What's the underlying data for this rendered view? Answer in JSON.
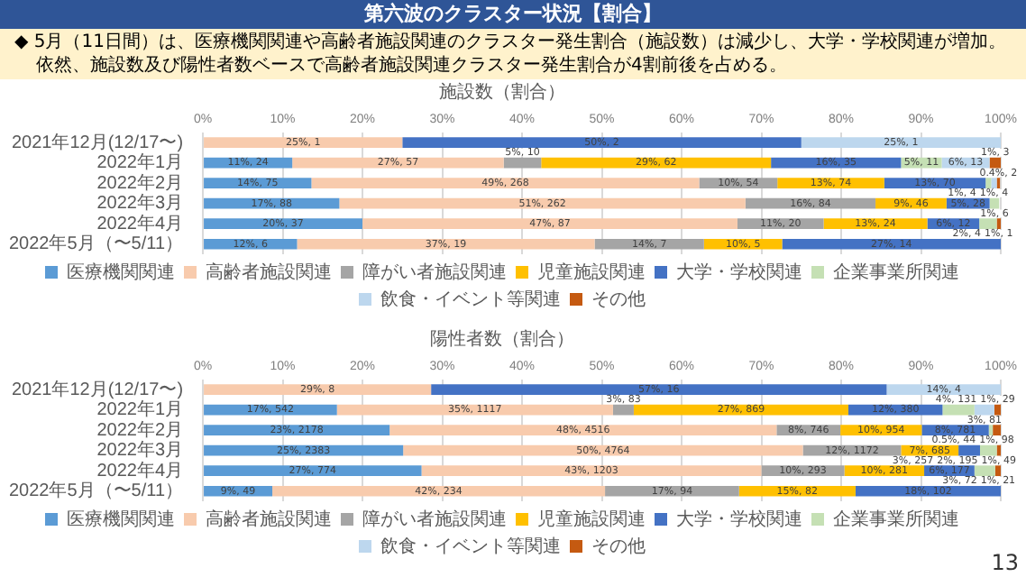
{
  "chart_data": [
    {
      "type": "bar",
      "orientation": "horizontal",
      "stacked": true,
      "title": "施設数（割合）",
      "annotations": [
        "第六波のクラスター状況【割合】",
        "◆ 5月（11日間）は、医療機関関連や高齢者施設関連のクラスター発生割合（施設数）は減少し、大学・学校関連が増加。",
        "依然、施設数及び陽性者数ベースで高齢者施設関連クラスター発生割合が4割前後を占める。"
      ],
      "categories": [
        "2021年12月(12/17〜)",
        "2022年1月",
        "2022年2月",
        "2022年3月",
        "2022年4月",
        "2022年5月（〜5/11）"
      ],
      "xlim": [
        0,
        100
      ],
      "xticks": [
        {
          "value": 0,
          "label": "0%"
        },
        {
          "value": 10,
          "label": "10%"
        },
        {
          "value": 20,
          "label": "20%"
        },
        {
          "value": 30,
          "label": "30%"
        },
        {
          "value": 40,
          "label": "40%"
        },
        {
          "value": 50,
          "label": "50%"
        },
        {
          "value": 60,
          "label": "60%"
        },
        {
          "value": 70,
          "label": "70%"
        },
        {
          "value": 80,
          "label": "80%"
        },
        {
          "value": 90,
          "label": "90%"
        },
        {
          "value": 100,
          "label": "100%"
        }
      ],
      "grid": "x",
      "legend": "bottom",
      "series": [
        {
          "name": "医療機関関連",
          "color": "#5b9bd5",
          "values": [
            null,
            11.2,
            13.6,
            17.1,
            20.0,
            11.8
          ],
          "value_labels": [
            null,
            "11%, 24",
            "14%, 75",
            "17%, 88",
            "20%, 37",
            "12%, 6"
          ]
        },
        {
          "name": "高齢者施設関連",
          "color": "#f8cbad",
          "values": [
            25,
            26.5,
            48.6,
            50.9,
            47.0,
            37.3
          ],
          "value_labels": [
            "25%, 1",
            "27%, 57",
            "49%, 268",
            "51%, 262",
            "47%, 87",
            "37%, 19"
          ]
        },
        {
          "name": "障がい者施設関連",
          "color": "#a5a5a5",
          "values": [
            null,
            4.7,
            9.8,
            16.3,
            10.8,
            13.7
          ],
          "value_labels": [
            null,
            "5%, 10",
            "10%, 54",
            "16%, 84",
            "11%, 20",
            "14%, 7"
          ]
        },
        {
          "name": "児童施設関連",
          "color": "#ffc000",
          "values": [
            null,
            28.8,
            13.4,
            8.9,
            13.0,
            9.8
          ],
          "value_labels": [
            null,
            "29%, 62",
            "13%, 74",
            "9%, 46",
            "13%, 24",
            "10%, 5"
          ]
        },
        {
          "name": "大学・学校関連",
          "color": "#4472c4",
          "values": [
            50,
            16.3,
            12.7,
            5.4,
            6.5,
            27.4
          ],
          "value_labels": [
            "50%, 2",
            "16%, 35",
            "13%, 70",
            "5%, 28",
            "6%, 12",
            "27%, 14"
          ]
        },
        {
          "name": "企業事業所関連",
          "color": "#c5e0b4",
          "values": [
            null,
            5.1,
            0.7,
            1.2,
            2.2,
            null
          ],
          "value_labels": [
            null,
            "5%, 11",
            "1%, 4",
            "1%, 6",
            "2%, 4",
            null
          ]
        },
        {
          "name": "飲食・イベント等関連",
          "color": "#bdd7ee",
          "values": [
            25,
            6.0,
            0.7,
            null,
            null,
            null
          ],
          "value_labels": [
            "25%, 1",
            "6%, 13",
            "1%, 4",
            null,
            null,
            null
          ]
        },
        {
          "name": "その他",
          "color": "#c55a11",
          "values": [
            null,
            1.4,
            0.4,
            null,
            0.5,
            null
          ],
          "value_labels": [
            null,
            "1%, 3",
            "0.4%, 2",
            null,
            "1%, 1",
            null
          ]
        }
      ]
    },
    {
      "type": "bar",
      "orientation": "horizontal",
      "stacked": true,
      "title": "陽性者数（割合）",
      "annotations": [
        "13"
      ],
      "categories": [
        "2021年12月(12/17〜)",
        "2022年1月",
        "2022年2月",
        "2022年3月",
        "2022年4月",
        "2022年5月（〜5/11）"
      ],
      "xlim": [
        0,
        100
      ],
      "xticks": [
        {
          "value": 0,
          "label": "0%"
        },
        {
          "value": 10,
          "label": "10%"
        },
        {
          "value": 20,
          "label": "20%"
        },
        {
          "value": 30,
          "label": "30%"
        },
        {
          "value": 40,
          "label": "40%"
        },
        {
          "value": 50,
          "label": "50%"
        },
        {
          "value": 60,
          "label": "60%"
        },
        {
          "value": 70,
          "label": "70%"
        },
        {
          "value": 80,
          "label": "80%"
        },
        {
          "value": 90,
          "label": "90%"
        },
        {
          "value": 100,
          "label": "100%"
        }
      ],
      "grid": "x",
      "legend": "bottom",
      "series": [
        {
          "name": "医療機関関連",
          "color": "#5b9bd5",
          "values": [
            null,
            16.8,
            23.4,
            25.1,
            27.4,
            8.7
          ],
          "value_labels": [
            null,
            "17%, 542",
            "23%, 2178",
            "25%, 2383",
            "27%, 774",
            "9%, 49"
          ]
        },
        {
          "name": "高齢者施設関連",
          "color": "#f8cbad",
          "values": [
            28.6,
            34.6,
            48.5,
            50.1,
            42.6,
            41.7
          ],
          "value_labels": [
            "29%, 8",
            "35%, 1117",
            "48%, 4516",
            "50%, 4764",
            "43%, 1203",
            "42%, 234"
          ]
        },
        {
          "name": "障がい者施設関連",
          "color": "#a5a5a5",
          "values": [
            null,
            2.6,
            8.0,
            12.3,
            10.4,
            16.8
          ],
          "value_labels": [
            null,
            "3%, 83",
            "8%, 746",
            "12%, 1172",
            "10%, 293",
            "17%, 94"
          ]
        },
        {
          "name": "児童施設関連",
          "color": "#ffc000",
          "values": [
            null,
            26.9,
            10.2,
            7.2,
            10.0,
            14.6
          ],
          "value_labels": [
            null,
            "27%, 869",
            "10%, 954",
            "7%, 685",
            "10%, 281",
            "15%, 82"
          ]
        },
        {
          "name": "大学・学校関連",
          "color": "#4472c4",
          "values": [
            57.1,
            11.8,
            8.4,
            2.7,
            6.3,
            18.2
          ],
          "value_labels": [
            "57%, 16",
            "12%, 380",
            "8%, 781",
            "3%, 257",
            "6%, 177",
            "18%, 102"
          ]
        },
        {
          "name": "企業事業所関連",
          "color": "#c5e0b4",
          "values": [
            null,
            4.0,
            0.5,
            2.1,
            2.6,
            null
          ],
          "value_labels": [
            null,
            "4%, 131",
            "0.5%, 44",
            "2%, 195",
            "3%, 72",
            null
          ]
        },
        {
          "name": "飲食・イベント等関連",
          "color": "#bdd7ee",
          "values": [
            14.3,
            2.5,
            null,
            null,
            null,
            null
          ],
          "value_labels": [
            "14%, 4",
            "3%, 81",
            null,
            null,
            null,
            null
          ]
        },
        {
          "name": "その他",
          "color": "#c55a11",
          "values": [
            null,
            0.8,
            1.0,
            0.5,
            0.7,
            null
          ],
          "value_labels": [
            null,
            "1%, 29",
            "1%, 98",
            "1%, 49",
            "1%, 21",
            null
          ]
        }
      ]
    }
  ]
}
